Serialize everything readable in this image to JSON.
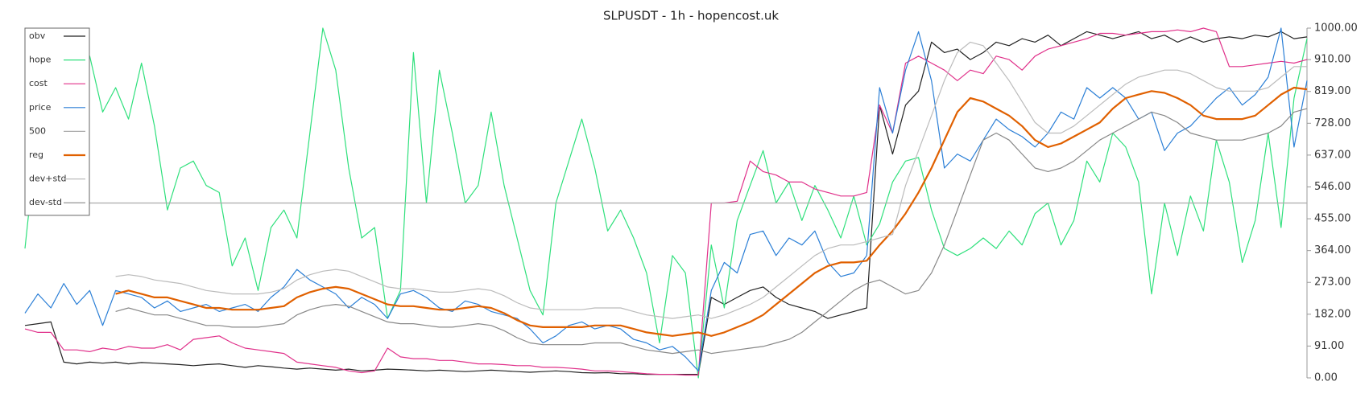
{
  "chart_data": {
    "type": "line",
    "title": "SLPUSDT - 1h - hopencost.uk",
    "ylim": [
      0,
      1000
    ],
    "yticks": [
      {
        "value": 0,
        "label": "0.00"
      },
      {
        "value": 91,
        "label": "91.00"
      },
      {
        "value": 182,
        "label": "182.00"
      },
      {
        "value": 273,
        "label": "273.00"
      },
      {
        "value": 364,
        "label": "364.00"
      },
      {
        "value": 455,
        "label": "455.00"
      },
      {
        "value": 546,
        "label": "546.00"
      },
      {
        "value": 637,
        "label": "637.00"
      },
      {
        "value": 728,
        "label": "728.00"
      },
      {
        "value": 819,
        "label": "819.00"
      },
      {
        "value": 910,
        "label": "910.00"
      },
      {
        "value": 1000,
        "label": "1000.00"
      }
    ],
    "legend": "top-left",
    "series": [
      {
        "name": "obv",
        "color": "#222222",
        "width": 1.2,
        "values": [
          150,
          155,
          160,
          45,
          40,
          45,
          42,
          45,
          40,
          44,
          42,
          40,
          38,
          35,
          38,
          40,
          35,
          30,
          35,
          32,
          28,
          25,
          28,
          25,
          22,
          25,
          20,
          22,
          25,
          24,
          22,
          20,
          22,
          20,
          18,
          20,
          22,
          20,
          18,
          16,
          18,
          20,
          18,
          15,
          14,
          15,
          12,
          12,
          10,
          10,
          10,
          10,
          10,
          230,
          210,
          230,
          250,
          260,
          230,
          210,
          200,
          190,
          170,
          180,
          190,
          200,
          780,
          640,
          780,
          820,
          960,
          930,
          940,
          910,
          930,
          960,
          950,
          970,
          960,
          980,
          950,
          970,
          990,
          980,
          970,
          980,
          990,
          970,
          980,
          960,
          975,
          960,
          970,
          975,
          970,
          980,
          975,
          990,
          970,
          975
        ]
      },
      {
        "name": "hope",
        "color": "#2fe07c",
        "width": 1.2,
        "values": [
          370,
          720,
          560,
          800,
          770,
          920,
          760,
          830,
          740,
          900,
          720,
          480,
          600,
          620,
          550,
          530,
          320,
          400,
          250,
          430,
          480,
          400,
          700,
          1000,
          880,
          600,
          400,
          430,
          170,
          250,
          930,
          500,
          880,
          700,
          500,
          550,
          760,
          550,
          400,
          250,
          180,
          500,
          620,
          740,
          600,
          420,
          480,
          400,
          300,
          100,
          350,
          300,
          0,
          380,
          200,
          450,
          550,
          650,
          500,
          560,
          450,
          550,
          480,
          400,
          520,
          380,
          440,
          560,
          620,
          630,
          480,
          370,
          350,
          370,
          400,
          370,
          420,
          380,
          470,
          500,
          380,
          450,
          620,
          560,
          700,
          660,
          560,
          240,
          500,
          350,
          520,
          420,
          680,
          560,
          330,
          450,
          700,
          430,
          800,
          970
        ]
      },
      {
        "name": "cost",
        "color": "#e0308a",
        "width": 1.2,
        "values": [
          140,
          130,
          130,
          80,
          80,
          75,
          85,
          80,
          90,
          85,
          85,
          95,
          80,
          110,
          115,
          120,
          100,
          85,
          80,
          75,
          70,
          45,
          40,
          35,
          30,
          20,
          15,
          20,
          85,
          60,
          55,
          55,
          50,
          50,
          45,
          40,
          40,
          38,
          35,
          35,
          30,
          30,
          28,
          25,
          20,
          20,
          18,
          15,
          12,
          10,
          10,
          8,
          8,
          500,
          500,
          505,
          620,
          590,
          580,
          560,
          560,
          540,
          530,
          520,
          520,
          530,
          780,
          700,
          900,
          920,
          900,
          880,
          850,
          880,
          870,
          920,
          910,
          880,
          920,
          940,
          950,
          960,
          970,
          985,
          985,
          980,
          985,
          990,
          990,
          995,
          990,
          1000,
          990,
          890,
          890,
          895,
          900,
          905,
          900,
          910
        ]
      },
      {
        "name": "price",
        "color": "#2b7fd6",
        "width": 1.2,
        "values": [
          185,
          240,
          200,
          270,
          210,
          250,
          150,
          250,
          240,
          230,
          200,
          220,
          190,
          200,
          210,
          190,
          200,
          210,
          190,
          230,
          260,
          310,
          280,
          260,
          240,
          200,
          230,
          210,
          170,
          240,
          250,
          230,
          200,
          190,
          220,
          210,
          190,
          180,
          170,
          140,
          100,
          120,
          150,
          160,
          140,
          150,
          140,
          110,
          100,
          80,
          90,
          60,
          20,
          250,
          330,
          300,
          410,
          420,
          350,
          400,
          380,
          420,
          330,
          290,
          300,
          350,
          830,
          700,
          880,
          990,
          850,
          600,
          640,
          620,
          680,
          740,
          710,
          690,
          660,
          700,
          760,
          740,
          830,
          800,
          830,
          800,
          740,
          760,
          650,
          700,
          720,
          760,
          800,
          830,
          780,
          810,
          860,
          1000,
          660,
          850
        ]
      },
      {
        "name": "500",
        "color": "#aaaaaa",
        "width": 1.2,
        "values": [
          500,
          500,
          500,
          500,
          500,
          500,
          500,
          500,
          500,
          500,
          500,
          500,
          500,
          500,
          500,
          500,
          500,
          500,
          500,
          500,
          500,
          500,
          500,
          500,
          500,
          500,
          500,
          500,
          500,
          500,
          500,
          500,
          500,
          500,
          500,
          500,
          500,
          500,
          500,
          500,
          500,
          500,
          500,
          500,
          500,
          500,
          500,
          500,
          500,
          500,
          500,
          500,
          500,
          500,
          500,
          500,
          500,
          500,
          500,
          500,
          500,
          500,
          500,
          500,
          500,
          500,
          500,
          500,
          500,
          500,
          500,
          500,
          500,
          500,
          500,
          500,
          500,
          500,
          500,
          500,
          500,
          500,
          500,
          500,
          500,
          500,
          500,
          500,
          500,
          500,
          500,
          500,
          500,
          500,
          500,
          500,
          500,
          500,
          500,
          500
        ]
      },
      {
        "name": "reg",
        "color": "#e06000",
        "width": 2.2,
        "values": [
          null,
          null,
          null,
          null,
          null,
          null,
          null,
          240,
          250,
          240,
          230,
          230,
          220,
          210,
          200,
          200,
          195,
          195,
          195,
          200,
          205,
          230,
          245,
          255,
          260,
          255,
          240,
          225,
          210,
          205,
          205,
          200,
          195,
          195,
          200,
          205,
          200,
          185,
          165,
          150,
          145,
          145,
          145,
          145,
          150,
          150,
          150,
          140,
          130,
          125,
          120,
          125,
          130,
          120,
          130,
          145,
          160,
          180,
          210,
          240,
          270,
          300,
          320,
          330,
          330,
          335,
          380,
          420,
          470,
          530,
          600,
          680,
          760,
          800,
          790,
          770,
          750,
          720,
          680,
          660,
          670,
          690,
          710,
          730,
          770,
          800,
          810,
          820,
          815,
          800,
          780,
          750,
          740,
          740,
          740,
          750,
          780,
          810,
          830,
          825
        ]
      },
      {
        "name": "dev+std",
        "color": "#bbbbbb",
        "width": 1.2,
        "values": [
          null,
          null,
          null,
          null,
          null,
          null,
          null,
          290,
          295,
          290,
          280,
          275,
          270,
          260,
          250,
          245,
          240,
          240,
          240,
          245,
          255,
          280,
          295,
          305,
          310,
          305,
          290,
          275,
          260,
          255,
          255,
          250,
          245,
          245,
          250,
          255,
          250,
          235,
          215,
          200,
          195,
          195,
          195,
          195,
          200,
          200,
          200,
          190,
          180,
          175,
          170,
          175,
          180,
          170,
          180,
          195,
          210,
          230,
          260,
          290,
          320,
          350,
          370,
          380,
          380,
          390,
          400,
          410,
          550,
          650,
          750,
          850,
          930,
          960,
          950,
          900,
          850,
          790,
          730,
          700,
          700,
          720,
          750,
          780,
          810,
          840,
          860,
          870,
          880,
          880,
          870,
          850,
          830,
          820,
          820,
          820,
          830,
          860,
          890,
          890
        ]
      },
      {
        "name": "dev-std",
        "color": "#888888",
        "width": 1.2,
        "values": [
          null,
          null,
          null,
          null,
          null,
          null,
          null,
          190,
          200,
          190,
          180,
          180,
          170,
          160,
          150,
          150,
          145,
          145,
          145,
          150,
          155,
          180,
          195,
          205,
          210,
          205,
          190,
          175,
          160,
          155,
          155,
          150,
          145,
          145,
          150,
          155,
          150,
          135,
          115,
          100,
          95,
          95,
          95,
          95,
          100,
          100,
          100,
          90,
          80,
          75,
          70,
          75,
          80,
          70,
          75,
          80,
          85,
          90,
          100,
          110,
          130,
          160,
          190,
          220,
          250,
          270,
          280,
          260,
          240,
          250,
          300,
          380,
          480,
          580,
          680,
          700,
          680,
          640,
          600,
          590,
          600,
          620,
          650,
          680,
          700,
          720,
          740,
          760,
          750,
          730,
          700,
          690,
          680,
          680,
          680,
          690,
          700,
          720,
          760,
          770
        ]
      }
    ]
  }
}
